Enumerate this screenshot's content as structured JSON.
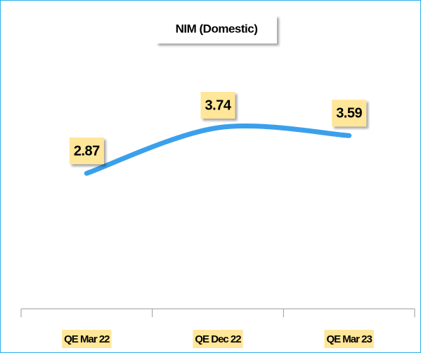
{
  "chart_data": {
    "type": "line",
    "title": "NIM (Domestic)",
    "categories": [
      "QE Mar 22",
      "QE Dec 22",
      "QE Mar 23"
    ],
    "values": [
      2.87,
      3.74,
      3.59
    ],
    "color": "#3aa0ec",
    "label_color": "#ffe699"
  }
}
